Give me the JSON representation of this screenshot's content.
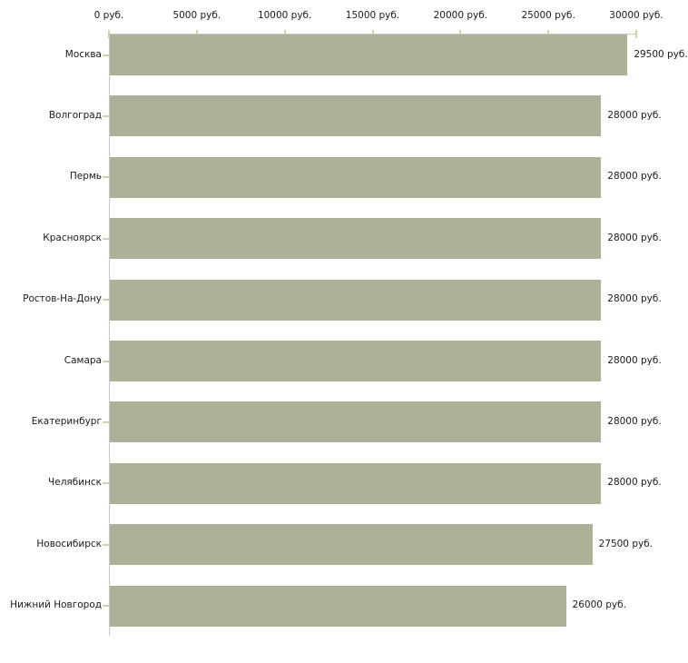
{
  "chart_data": {
    "type": "bar",
    "orientation": "horizontal",
    "title": "",
    "xlabel": "",
    "ylabel": "",
    "categories": [
      "Москва",
      "Волгоград",
      "Пермь",
      "Красноярск",
      "Ростов-На-Дону",
      "Самара",
      "Екатеринбург",
      "Челябинск",
      "Новосибирск",
      "Нижний Новгород"
    ],
    "values": [
      29500,
      28000,
      28000,
      28000,
      28000,
      28000,
      28000,
      28000,
      27500,
      26000
    ],
    "value_labels": [
      "29500 руб.",
      "28000 руб.",
      "28000 руб.",
      "28000 руб.",
      "28000 руб.",
      "28000 руб.",
      "28000 руб.",
      "28000 руб.",
      "27500 руб.",
      "26000 руб."
    ],
    "x_axis": {
      "position": "top",
      "range": [
        0,
        30000
      ],
      "ticks": [
        {
          "value": 0,
          "label": "0 руб."
        },
        {
          "value": 5000,
          "label": "5000 руб."
        },
        {
          "value": 10000,
          "label": "10000 руб."
        },
        {
          "value": 15000,
          "label": "15000 руб."
        },
        {
          "value": 20000,
          "label": "20000 руб."
        },
        {
          "value": 25000,
          "label": "25000 руб."
        },
        {
          "value": 30000,
          "label": "30000 руб."
        }
      ]
    },
    "grid": false,
    "legend": false,
    "colors": {
      "bar": "#acb198",
      "axis_line": "#c6c6c6",
      "tick": "#cfd2a8",
      "text": "#1a1a1a",
      "background": "#ffffff"
    }
  }
}
